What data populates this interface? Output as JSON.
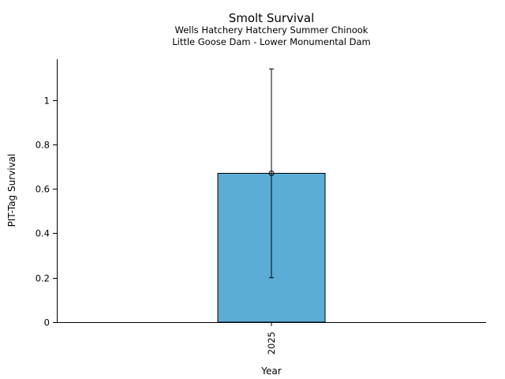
{
  "chart_data": {
    "type": "bar",
    "title": "Smolt Survival",
    "subtitle_lines": [
      "Wells Hatchery Hatchery Summer Chinook",
      "Little Goose Dam - Lower Monumental Dam"
    ],
    "xlabel": "Year",
    "ylabel": "PIT-Tag Survival",
    "categories": [
      "2025"
    ],
    "values": [
      0.67
    ],
    "error_low": [
      0.2
    ],
    "error_high": [
      1.14
    ],
    "ylim": [
      0,
      1.18
    ],
    "yticks": [
      0,
      0.2,
      0.4,
      0.6,
      0.8,
      1
    ],
    "ytick_labels": [
      "0",
      "0.2",
      "0.4",
      "0.6",
      "0.8",
      "1"
    ],
    "grid": false,
    "bar_color": "#5bacd6",
    "marker": "circle"
  }
}
